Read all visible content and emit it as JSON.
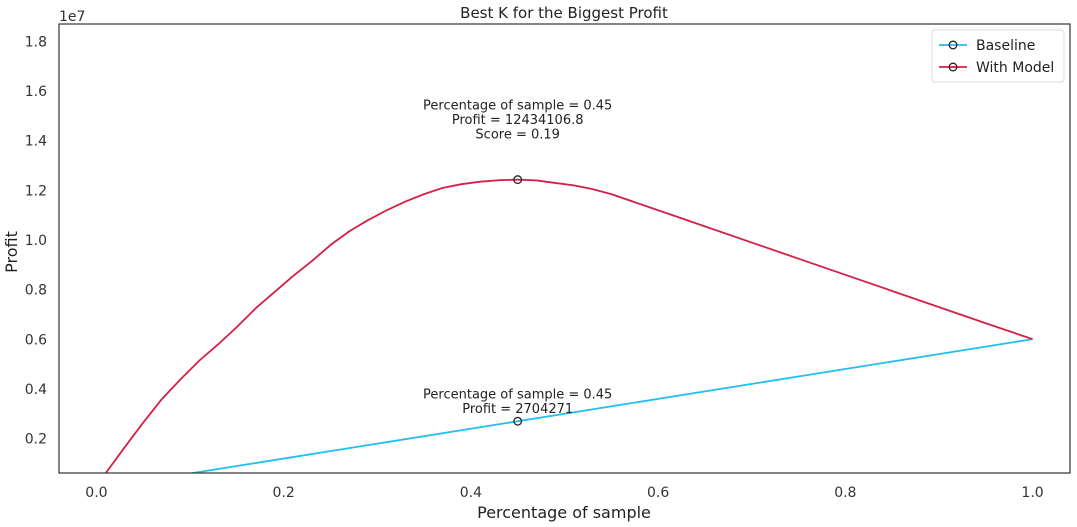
{
  "chart_data": {
    "type": "line",
    "title": "Best K for the Biggest Profit",
    "xlabel": "Percentage of sample",
    "ylabel": "Profit",
    "y_multiplier_label": "1e7",
    "xlim": [
      -0.04,
      1.04
    ],
    "ylim": [
      620000,
      18700000
    ],
    "xticks": [
      0.0,
      0.2,
      0.4,
      0.6,
      0.8,
      1.0
    ],
    "xtick_labels": [
      "0.0",
      "0.2",
      "0.4",
      "0.6",
      "0.8",
      "1.0"
    ],
    "yticks": [
      2000000,
      4000000,
      6000000,
      8000000,
      10000000,
      12000000,
      14000000,
      16000000,
      18000000
    ],
    "ytick_labels": [
      "0.2",
      "0.4",
      "0.6",
      "0.8",
      "1.0",
      "1.2",
      "1.4",
      "1.6",
      "1.8"
    ],
    "grid": false,
    "legend_position": "top-right",
    "series": [
      {
        "name": "Baseline",
        "color": "#1fbfef",
        "x": [
          0.0,
          1.0
        ],
        "y": [
          0,
          6010000
        ]
      },
      {
        "name": "With Model",
        "color": "#d41f47",
        "x": [
          0.01,
          0.03,
          0.05,
          0.07,
          0.09,
          0.11,
          0.13,
          0.15,
          0.17,
          0.19,
          0.21,
          0.23,
          0.25,
          0.27,
          0.29,
          0.31,
          0.33,
          0.35,
          0.37,
          0.39,
          0.41,
          0.43,
          0.45,
          0.47,
          0.49,
          0.51,
          0.53,
          0.55,
          0.6,
          0.65,
          0.7,
          0.75,
          0.8,
          0.85,
          0.9,
          0.95,
          1.0
        ],
        "y": [
          620000,
          1650000,
          2650000,
          3600000,
          4400000,
          5150000,
          5800000,
          6500000,
          7250000,
          7900000,
          8550000,
          9150000,
          9800000,
          10350000,
          10800000,
          11200000,
          11550000,
          11850000,
          12100000,
          12250000,
          12350000,
          12410000,
          12434107,
          12400000,
          12300000,
          12200000,
          12050000,
          11850000,
          11200000,
          10550000,
          9900000,
          9250000,
          8600000,
          7950000,
          7300000,
          6650000,
          6010000
        ]
      }
    ],
    "annotations": [
      {
        "x": 0.45,
        "y": 12434106.8,
        "series": "With Model",
        "lines": [
          "Percentage of sample = 0.45",
          "Profit = 12434106.8",
          "Score = 0.19"
        ]
      },
      {
        "x": 0.45,
        "y": 2704271,
        "series": "Baseline",
        "lines": [
          "Percentage of sample = 0.45",
          "Profit = 2704271"
        ]
      }
    ]
  }
}
